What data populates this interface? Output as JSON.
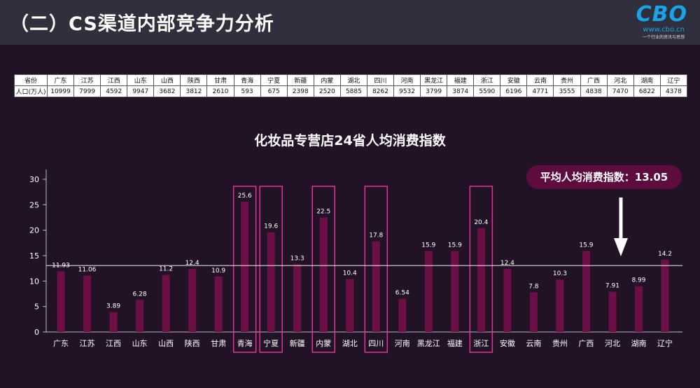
{
  "header": {
    "title": "（二）CS渠道内部竞争力分析",
    "logo_text": "CBO",
    "logo_url": "www.cbo.cn",
    "logo_tagline": "一个行业的资讯与思想"
  },
  "population_table": {
    "row1_label": "省份",
    "row2_label": "人口(万人)",
    "provinces": [
      "广东",
      "江苏",
      "江西",
      "山东",
      "山西",
      "陕西",
      "甘肃",
      "青海",
      "宁夏",
      "新疆",
      "内蒙",
      "湖北",
      "四川",
      "河南",
      "黑龙江",
      "福建",
      "浙江",
      "安徽",
      "云南",
      "贵州",
      "广西",
      "河北",
      "湖南",
      "辽宁"
    ],
    "population": [
      "10999",
      "7999",
      "4592",
      "9947",
      "3682",
      "3812",
      "2610",
      "593",
      "675",
      "2398",
      "2520",
      "5885",
      "8262",
      "9532",
      "3799",
      "3874",
      "5590",
      "6196",
      "4771",
      "3555",
      "4838",
      "7470",
      "6822",
      "4378"
    ]
  },
  "avg_badge": "平均人均消费指数：13.05",
  "colors": {
    "background": "#221226",
    "header_bg": "#2f2f3d",
    "bar": "#6d0f47",
    "highlight_box": "#e0339c",
    "badge_bg": "#5e0c3d",
    "avg_line": "#d8d8d8",
    "logo": "#1aa3e8"
  },
  "chart_data": {
    "type": "bar",
    "title": "化妆品专营店24省人均消费指数",
    "categories": [
      "广东",
      "江苏",
      "江西",
      "山东",
      "山西",
      "陕西",
      "甘肃",
      "青海",
      "宁夏",
      "新疆",
      "内蒙",
      "湖北",
      "四川",
      "河南",
      "黑龙江",
      "福建",
      "浙江",
      "安徽",
      "云南",
      "贵州",
      "广西",
      "河北",
      "湖南",
      "辽宁"
    ],
    "values": [
      11.93,
      11.06,
      3.89,
      6.28,
      11.2,
      12.4,
      10.9,
      25.6,
      19.6,
      13.3,
      22.5,
      10.4,
      17.8,
      6.54,
      15.9,
      15.9,
      20.4,
      12.4,
      7.8,
      10.3,
      15.9,
      7.91,
      8.99,
      14.2
    ],
    "value_labels": [
      "11.93",
      "11.06",
      "3.89",
      "6.28",
      "11.2",
      "12.4",
      "10.9",
      "25.6",
      "19.6",
      "13.3",
      "22.5",
      "10.4",
      "17.8",
      "6.54",
      "15.9",
      "15.9",
      "20.4",
      "12.4",
      "7.8",
      "10.3",
      "15.9",
      "7.91",
      "8.99",
      "14.2"
    ],
    "highlighted": [
      "青海",
      "宁夏",
      "内蒙",
      "四川",
      "浙江"
    ],
    "average": 13.05,
    "ylim": [
      0,
      30
    ],
    "yticks": [
      0,
      5,
      10,
      15,
      20,
      25,
      30
    ],
    "ytick_labels": [
      "0",
      "5",
      "10",
      "15",
      "20",
      "25",
      "30"
    ],
    "arrow_points_to": "河北",
    "grid": false,
    "legend": "none"
  }
}
